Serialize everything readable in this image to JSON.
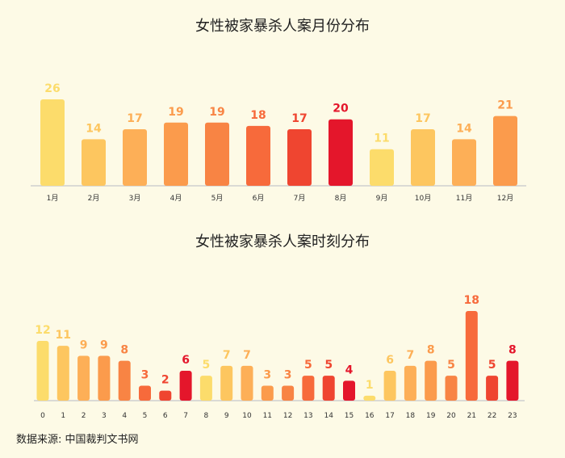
{
  "source_text": "数据来源: 中国裁判文书网",
  "colors": {
    "background": "#fdfae6",
    "axis": "#cfcfcf",
    "palette_yellow": "#fcdc6b",
    "palette_light_orange": "#fdc65f",
    "palette_orange": "#fb9b4c",
    "palette_dark_orange": "#f76a3b",
    "palette_red_orange": "#ef4530",
    "palette_red": "#e4162b"
  },
  "chart_data": [
    {
      "type": "bar",
      "title": "女性被家暴杀人案月份分布",
      "xlabel": "",
      "ylabel": "",
      "categories": [
        "1月",
        "2月",
        "3月",
        "4月",
        "5月",
        "6月",
        "7月",
        "8月",
        "9月",
        "10月",
        "11月",
        "12月"
      ],
      "values": [
        26,
        14,
        17,
        19,
        19,
        18,
        17,
        20,
        11,
        17,
        14,
        21
      ],
      "colors": [
        "#fcdc6b",
        "#fdc65f",
        "#fdaf57",
        "#fb9b4c",
        "#f88444",
        "#f76a3b",
        "#ef4530",
        "#e4162b",
        "#fcdc6b",
        "#fdc65f",
        "#fdaf57",
        "#fb9b4c"
      ],
      "ylim": [
        0,
        26
      ],
      "grid": false
    },
    {
      "type": "bar",
      "title": "女性被家暴杀人案时刻分布",
      "xlabel": "",
      "ylabel": "",
      "categories": [
        "0",
        "1",
        "2",
        "3",
        "4",
        "5",
        "6",
        "7",
        "8",
        "9",
        "10",
        "11",
        "12",
        "13",
        "14",
        "15",
        "16",
        "17",
        "18",
        "19",
        "20",
        "21",
        "22",
        "23"
      ],
      "values": [
        12,
        11,
        9,
        9,
        8,
        3,
        2,
        6,
        5,
        7,
        7,
        3,
        3,
        5,
        5,
        4,
        1,
        6,
        7,
        8,
        5,
        18,
        5,
        8
      ],
      "colors": [
        "#fcdc6b",
        "#fdc65f",
        "#fdaf57",
        "#fb9b4c",
        "#f88444",
        "#f76a3b",
        "#ef4530",
        "#e4162b",
        "#fcdc6b",
        "#fdc65f",
        "#fdaf57",
        "#fb9b4c",
        "#f88444",
        "#f76a3b",
        "#ef4530",
        "#e4162b",
        "#fcdc6b",
        "#fdc65f",
        "#fdaf57",
        "#fb9b4c",
        "#f88444",
        "#f76a3b",
        "#ef4530",
        "#e4162b"
      ],
      "ylim": [
        0,
        18
      ],
      "grid": false
    }
  ]
}
